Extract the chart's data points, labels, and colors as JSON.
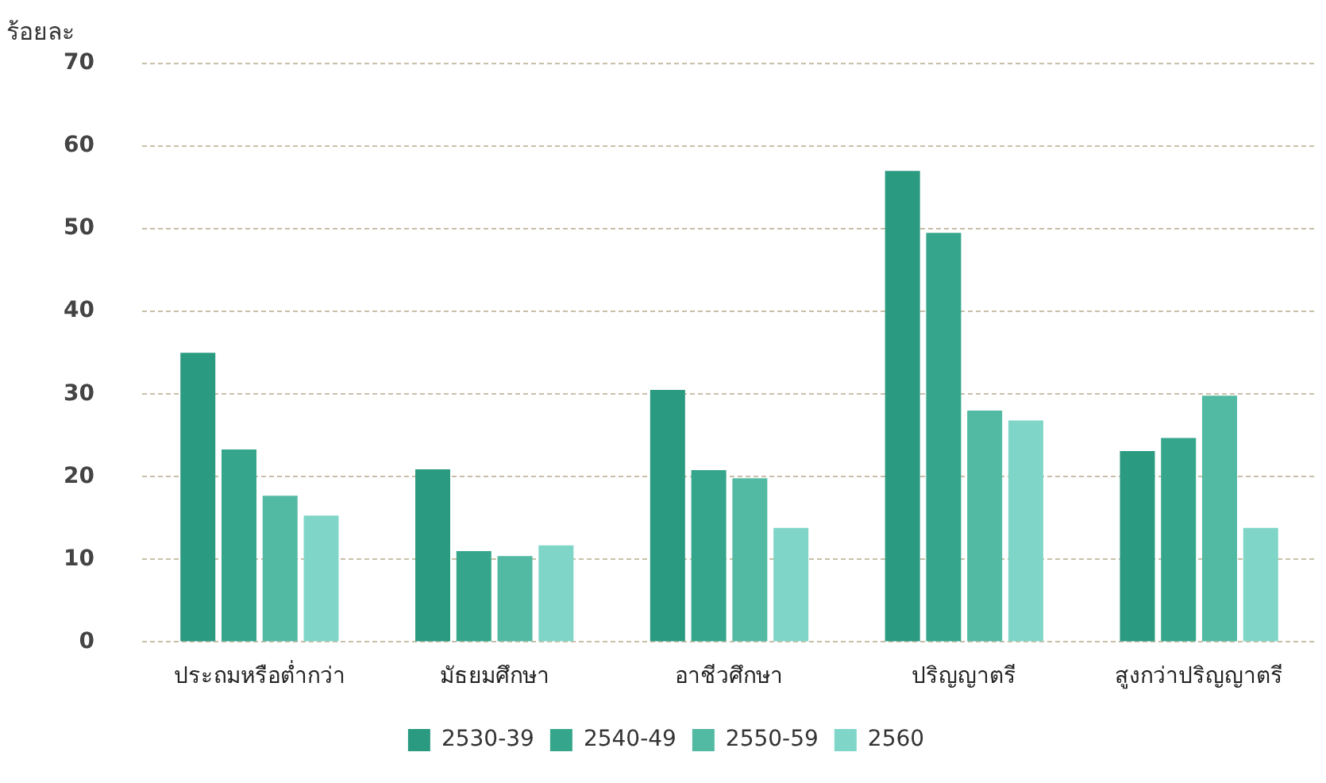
{
  "chart_data": {
    "type": "bar",
    "ylabel": "ร้อยละ",
    "categories": [
      "ประถมหรือต่ำกว่า",
      "มัธยมศึกษา",
      "อาชีวศึกษา",
      "ปริญญาตรี",
      "สูงกว่าปริญญาตรี"
    ],
    "series": [
      {
        "name": "2530-39",
        "color": "#2a9a80",
        "values": [
          35,
          20.9,
          30.5,
          57,
          23.1
        ]
      },
      {
        "name": "2540-49",
        "color": "#35a68b",
        "values": [
          23.3,
          11,
          20.8,
          49.5,
          24.7
        ]
      },
      {
        "name": "2550-59",
        "color": "#52b9a3",
        "values": [
          17.7,
          10.4,
          19.8,
          28,
          29.8
        ]
      },
      {
        "name": "2560",
        "color": "#7fd6c8",
        "values": [
          15.3,
          11.7,
          13.8,
          26.8,
          13.8
        ]
      }
    ],
    "ylim": [
      0,
      70
    ],
    "yticks": [
      0,
      10,
      20,
      30,
      40,
      50,
      60,
      70
    ],
    "grid": "y",
    "legend": "bottom"
  }
}
